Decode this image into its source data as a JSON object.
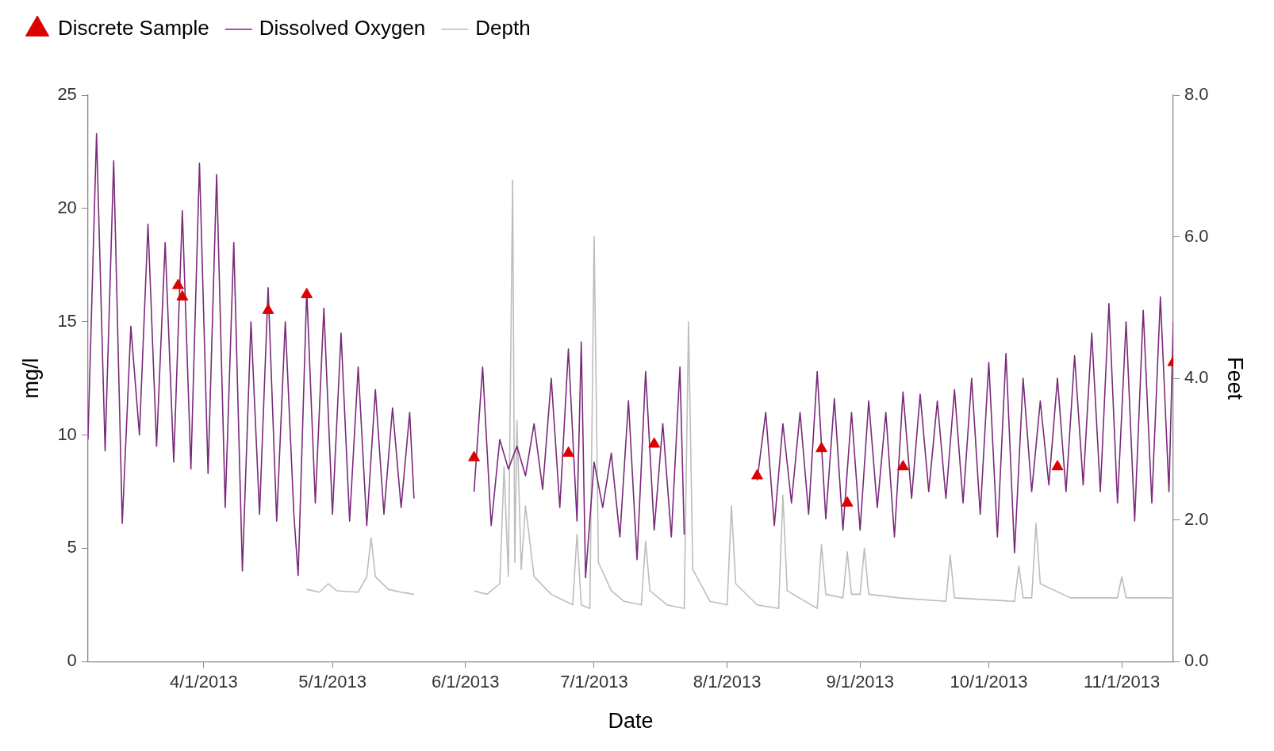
{
  "chart_data": {
    "type": "line",
    "xlabel": "Date",
    "ylabel": "mg/l",
    "y2label": "Feet",
    "legend": "top left",
    "grid": false,
    "xlim": [
      "2013-03-05",
      "2013-11-13"
    ],
    "xticks": [
      {
        "value": "2013-04-01",
        "label": "4/1/2013"
      },
      {
        "value": "2013-05-01",
        "label": "5/1/2013"
      },
      {
        "value": "2013-06-01",
        "label": "6/1/2013"
      },
      {
        "value": "2013-07-01",
        "label": "7/1/2013"
      },
      {
        "value": "2013-08-01",
        "label": "8/1/2013"
      },
      {
        "value": "2013-09-01",
        "label": "9/1/2013"
      },
      {
        "value": "2013-10-01",
        "label": "10/1/2013"
      },
      {
        "value": "2013-11-01",
        "label": "11/1/2013"
      }
    ],
    "ylim": [
      0,
      25
    ],
    "yticks": [
      0,
      5,
      10,
      15,
      20,
      25
    ],
    "y2lim": [
      0,
      8
    ],
    "y2ticks": [
      {
        "value": 0,
        "label": "0.0"
      },
      {
        "value": 2,
        "label": "2.0"
      },
      {
        "value": 4,
        "label": "4.0"
      },
      {
        "value": 6,
        "label": "6.0"
      },
      {
        "value": 8,
        "label": "8.0"
      }
    ],
    "series": [
      {
        "name": "Discrete Sample",
        "type": "scatter",
        "marker": "triangle",
        "color": "#dd0000",
        "x": [
          "2013-03-26",
          "2013-03-27",
          "2013-04-16",
          "2013-04-25",
          "2013-06-03",
          "2013-06-25",
          "2013-07-15",
          "2013-08-08",
          "2013-08-23",
          "2013-08-29",
          "2013-09-11",
          "2013-10-17",
          "2013-11-13"
        ],
        "values": [
          16.6,
          16.1,
          15.5,
          16.2,
          9.0,
          9.2,
          9.6,
          8.2,
          9.4,
          7.0,
          8.6,
          8.6,
          13.2
        ]
      },
      {
        "name": "Dissolved Oxygen",
        "marker": "none",
        "color": "#7a2a7a",
        "x": [
          "2013-03-05",
          "2013-03-07",
          "2013-03-09",
          "2013-03-11",
          "2013-03-13",
          "2013-03-15",
          "2013-03-17",
          "2013-03-19",
          "2013-03-21",
          "2013-03-23",
          "2013-03-25",
          "2013-03-27",
          "2013-03-29",
          "2013-03-31",
          "2013-04-02",
          "2013-04-04",
          "2013-04-06",
          "2013-04-08",
          "2013-04-10",
          "2013-04-12",
          "2013-04-14",
          "2013-04-16",
          "2013-04-18",
          "2013-04-20",
          "2013-04-22",
          "2013-04-23",
          "2013-04-25",
          "2013-04-27",
          "2013-04-29",
          "2013-05-01",
          "2013-05-03",
          "2013-05-05",
          "2013-05-07",
          "2013-05-09",
          "2013-05-11",
          "2013-05-13",
          "2013-05-15",
          "2013-05-17",
          "2013-05-19",
          "2013-05-20",
          "2013-05-27",
          "2013-06-03",
          "2013-06-05",
          "2013-06-07",
          "2013-06-09",
          "2013-06-11",
          "2013-06-13",
          "2013-06-15",
          "2013-06-17",
          "2013-06-19",
          "2013-06-21",
          "2013-06-23",
          "2013-06-25",
          "2013-06-27",
          "2013-06-28",
          "2013-06-29",
          "2013-07-01",
          "2013-07-03",
          "2013-07-05",
          "2013-07-07",
          "2013-07-09",
          "2013-07-11",
          "2013-07-13",
          "2013-07-15",
          "2013-07-17",
          "2013-07-19",
          "2013-07-21",
          "2013-07-22",
          "2013-07-29",
          "2013-08-08",
          "2013-08-10",
          "2013-08-12",
          "2013-08-14",
          "2013-08-16",
          "2013-08-18",
          "2013-08-20",
          "2013-08-22",
          "2013-08-24",
          "2013-08-26",
          "2013-08-28",
          "2013-08-30",
          "2013-09-01",
          "2013-09-03",
          "2013-09-05",
          "2013-09-07",
          "2013-09-09",
          "2013-09-11",
          "2013-09-13",
          "2013-09-15",
          "2013-09-17",
          "2013-09-19",
          "2013-09-21",
          "2013-09-23",
          "2013-09-25",
          "2013-09-27",
          "2013-09-29",
          "2013-10-01",
          "2013-10-03",
          "2013-10-05",
          "2013-10-07",
          "2013-10-09",
          "2013-10-11",
          "2013-10-13",
          "2013-10-15",
          "2013-10-17",
          "2013-10-19",
          "2013-10-21",
          "2013-10-23",
          "2013-10-25",
          "2013-10-27",
          "2013-10-29",
          "2013-10-31",
          "2013-11-02",
          "2013-11-04",
          "2013-11-06",
          "2013-11-08",
          "2013-11-10",
          "2013-11-12",
          "2013-11-13"
        ],
        "values": [
          9.8,
          23.3,
          9.3,
          22.1,
          6.1,
          14.8,
          10.0,
          19.3,
          9.5,
          18.5,
          8.8,
          19.9,
          8.5,
          22.0,
          8.3,
          21.5,
          6.8,
          18.5,
          4.0,
          15.0,
          6.5,
          16.5,
          6.2,
          15.0,
          6.5,
          3.8,
          16.4,
          7.0,
          15.6,
          6.5,
          14.5,
          6.2,
          13.0,
          6.0,
          12.0,
          6.5,
          11.2,
          6.8,
          11.0,
          7.2,
          null,
          7.5,
          13.0,
          6.0,
          9.8,
          8.5,
          9.5,
          8.2,
          10.5,
          7.6,
          12.5,
          6.8,
          13.8,
          6.2,
          14.1,
          3.7,
          8.8,
          6.8,
          9.2,
          5.5,
          11.5,
          4.5,
          12.8,
          5.8,
          10.5,
          5.5,
          13.0,
          5.6,
          null,
          8.0,
          11.0,
          6.0,
          10.5,
          7.0,
          11.0,
          6.5,
          12.8,
          6.3,
          11.6,
          5.8,
          11.0,
          5.8,
          11.5,
          6.8,
          11.0,
          5.5,
          11.9,
          7.2,
          11.8,
          7.5,
          11.5,
          7.2,
          12.0,
          7.0,
          12.5,
          6.5,
          13.2,
          5.5,
          13.6,
          4.8,
          12.5,
          7.5,
          11.5,
          7.8,
          12.5,
          7.5,
          13.5,
          7.8,
          14.5,
          7.5,
          15.8,
          7.0,
          15.0,
          6.2,
          15.5,
          7.0,
          16.1,
          7.5,
          15.0
        ]
      },
      {
        "name": "Depth",
        "axis": "y2",
        "marker": "none",
        "color": "#bdbdbd",
        "x": [
          "2013-04-25",
          "2013-04-28",
          "2013-04-30",
          "2013-05-02",
          "2013-05-07",
          "2013-05-09",
          "2013-05-10",
          "2013-05-11",
          "2013-05-14",
          "2013-05-17",
          "2013-05-20",
          "2013-05-27",
          "2013-06-03",
          "2013-06-06",
          "2013-06-09",
          "2013-06-10",
          "2013-06-11",
          "2013-06-12",
          "2013-06-12T12:00",
          "2013-06-13",
          "2013-06-14",
          "2013-06-15",
          "2013-06-17",
          "2013-06-21",
          "2013-06-26",
          "2013-06-27",
          "2013-06-28",
          "2013-06-30",
          "2013-07-01",
          "2013-07-02",
          "2013-07-05",
          "2013-07-08",
          "2013-07-12",
          "2013-07-13",
          "2013-07-14",
          "2013-07-18",
          "2013-07-22",
          "2013-07-23",
          "2013-07-24",
          "2013-07-28",
          "2013-08-01",
          "2013-08-02",
          "2013-08-03",
          "2013-08-08",
          "2013-08-13",
          "2013-08-14",
          "2013-08-15",
          "2013-08-22",
          "2013-08-23",
          "2013-08-24",
          "2013-08-28",
          "2013-08-29",
          "2013-08-30",
          "2013-09-01",
          "2013-09-02",
          "2013-09-03",
          "2013-09-10",
          "2013-09-21",
          "2013-09-22",
          "2013-09-23",
          "2013-10-07",
          "2013-10-08",
          "2013-10-09",
          "2013-10-11",
          "2013-10-12",
          "2013-10-13",
          "2013-10-20",
          "2013-10-31",
          "2013-11-01",
          "2013-11-02",
          "2013-11-13"
        ],
        "values": [
          1.02,
          0.98,
          1.1,
          1.0,
          0.98,
          1.2,
          1.75,
          1.2,
          1.02,
          0.98,
          0.95,
          null,
          1.0,
          0.95,
          1.1,
          2.75,
          1.2,
          6.8,
          1.4,
          3.4,
          1.3,
          2.2,
          1.2,
          0.95,
          0.8,
          1.8,
          0.8,
          0.75,
          6.0,
          1.4,
          1.0,
          0.85,
          0.8,
          1.7,
          1.0,
          0.8,
          0.75,
          4.8,
          1.3,
          0.85,
          0.8,
          2.2,
          1.1,
          0.8,
          0.75,
          2.35,
          1.0,
          0.75,
          1.65,
          0.95,
          0.9,
          1.55,
          0.95,
          0.95,
          1.6,
          0.95,
          0.9,
          0.85,
          1.5,
          0.9,
          0.85,
          1.35,
          0.9,
          0.9,
          1.95,
          1.1,
          0.9,
          0.9,
          1.2,
          0.9,
          0.9
        ]
      }
    ]
  }
}
